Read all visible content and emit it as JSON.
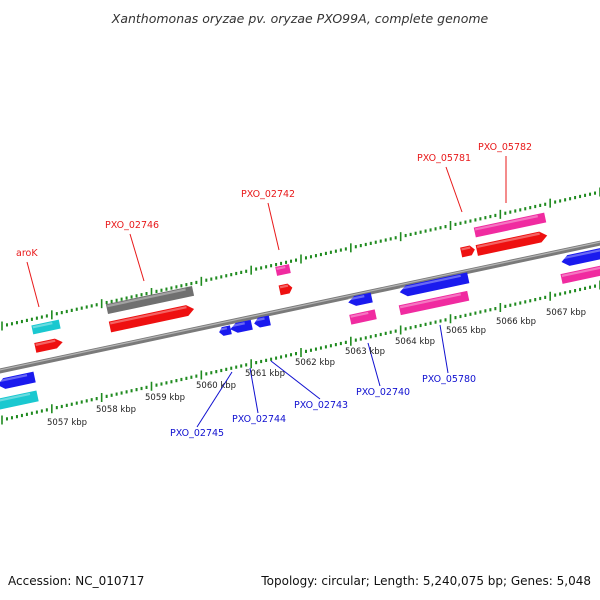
{
  "title": "Xanthomonas oryzae pv. oryzae PXO99A, complete genome",
  "footer": {
    "accession": "Accession: NC_010717",
    "summary": "Topology: circular; Length: 5,240,075 bp; Genes: 5,048"
  },
  "colors": {
    "forward_label": "#e8191a",
    "reverse_label": "#1010d0",
    "tick": "#1f8a1f",
    "backbone": "#8a8a8a",
    "gene_red": "#ee1010",
    "gene_blue": "#1a1aee",
    "gene_pink": "#f02ba0",
    "gene_cyan": "#1ac8d0",
    "gene_gray": "#707070"
  },
  "scale_labels": [
    "5057 kbp",
    "5058 kbp",
    "5059 kbp",
    "5060 kbp",
    "5061 kbp",
    "5062 kbp",
    "5063 kbp",
    "5064 kbp",
    "5065 kbp",
    "5066 kbp",
    "5067 kbp"
  ],
  "forward_gene_labels": [
    "aroK",
    "PXO_02746",
    "PXO_02742",
    "PXO_05781",
    "PXO_05782"
  ],
  "reverse_gene_labels": [
    "PXO_02745",
    "PXO_02744",
    "PXO_02743",
    "PXO_02740",
    "PXO_05780"
  ]
}
